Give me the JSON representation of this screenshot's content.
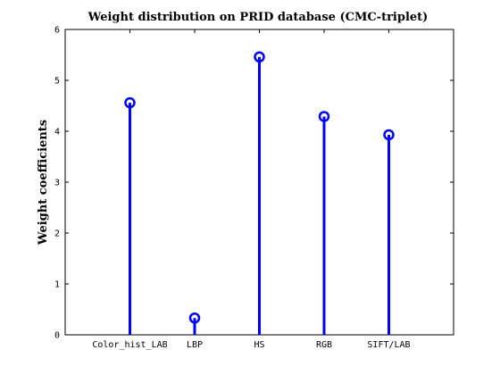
{
  "chart_data": {
    "type": "stem",
    "title": "Weight distribution on PRID database (CMC-triplet)",
    "xlabel": "",
    "ylabel": "Weight coefficients",
    "categories": [
      "Color_hist_LAB",
      "LBP",
      "HS",
      "RGB",
      "SIFT/LAB"
    ],
    "values": [
      4.56,
      0.33,
      5.46,
      4.29,
      3.93
    ],
    "ylim": [
      0,
      6
    ],
    "yticks": [
      0,
      1,
      2,
      3,
      4,
      5,
      6
    ],
    "grid": false,
    "legend": "none",
    "color": "#0000ff"
  }
}
